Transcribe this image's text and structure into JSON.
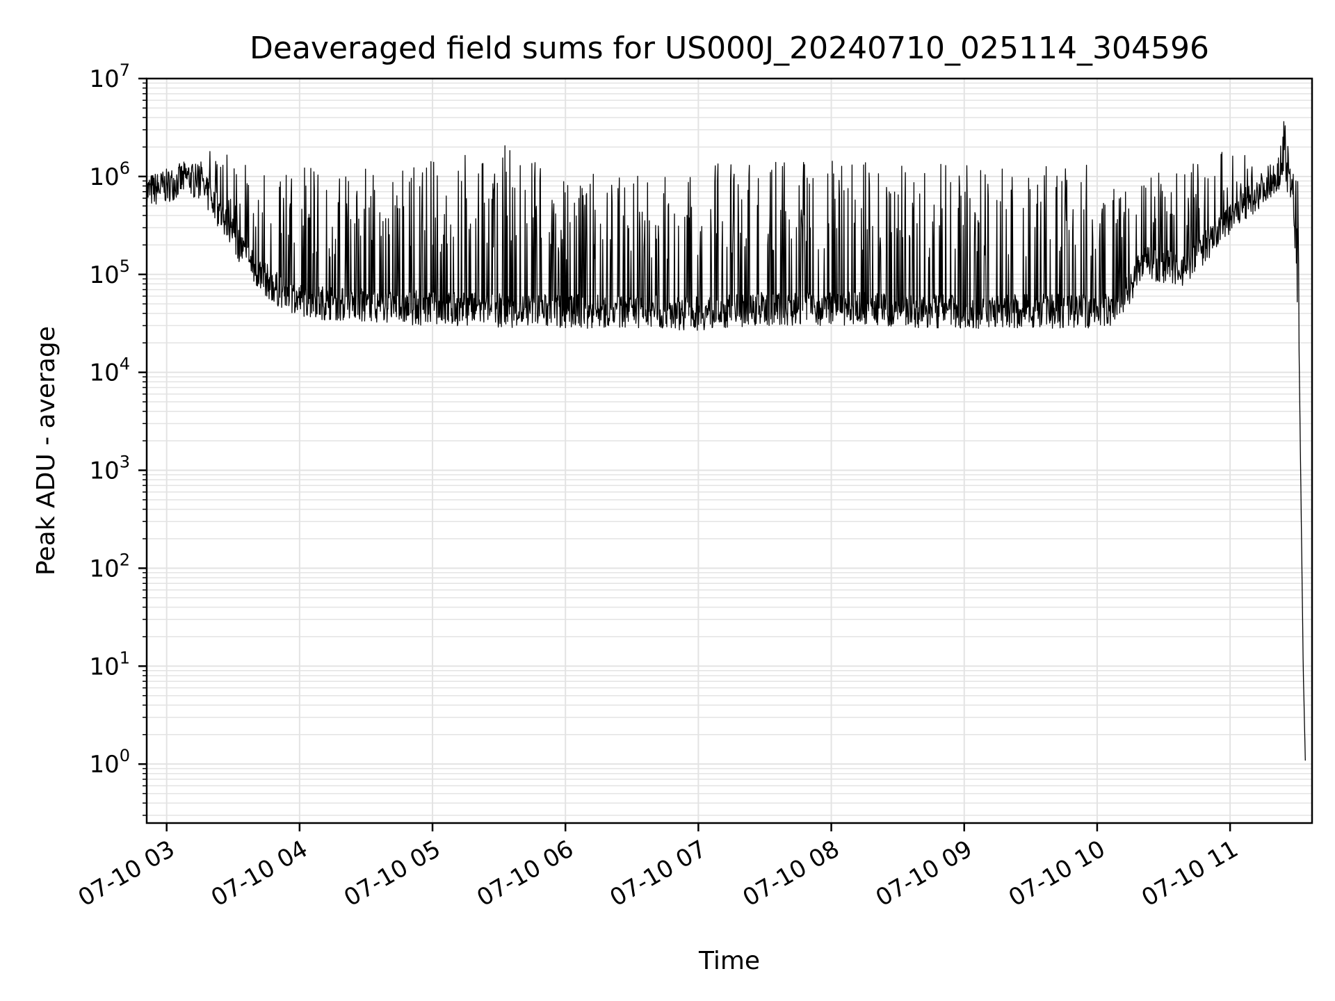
{
  "chart_data": {
    "type": "line",
    "title": "Deaveraged field sums for US000J_20240710_025114_304596",
    "xlabel": "Time",
    "ylabel": "Peak ADU - average",
    "y_scale": "log",
    "ylim": [
      0.25,
      10000000
    ],
    "xlim": [
      "2024-07-10 02:51",
      "2024-07-10 11:37"
    ],
    "grid": true,
    "line_color": "#000000",
    "grid_color": "#e3e3e3",
    "x_ticks": [
      {
        "value": "2024-07-10 03:00",
        "label": "07-10 03"
      },
      {
        "value": "2024-07-10 04:00",
        "label": "07-10 04"
      },
      {
        "value": "2024-07-10 05:00",
        "label": "07-10 05"
      },
      {
        "value": "2024-07-10 06:00",
        "label": "07-10 06"
      },
      {
        "value": "2024-07-10 07:00",
        "label": "07-10 07"
      },
      {
        "value": "2024-07-10 08:00",
        "label": "07-10 08"
      },
      {
        "value": "2024-07-10 09:00",
        "label": "07-10 09"
      },
      {
        "value": "2024-07-10 10:00",
        "label": "07-10 10"
      },
      {
        "value": "2024-07-10 11:00",
        "label": "07-10 11"
      }
    ],
    "y_ticks": [
      {
        "value": 1,
        "base": "10",
        "exp": "0"
      },
      {
        "value": 10,
        "base": "10",
        "exp": "1"
      },
      {
        "value": 100,
        "base": "10",
        "exp": "2"
      },
      {
        "value": 1000,
        "base": "10",
        "exp": "3"
      },
      {
        "value": 10000,
        "base": "10",
        "exp": "4"
      },
      {
        "value": 100000,
        "base": "10",
        "exp": "5"
      },
      {
        "value": 1000000,
        "base": "10",
        "exp": "6"
      },
      {
        "value": 10000000,
        "base": "10",
        "exp": "7"
      }
    ],
    "series": [
      {
        "x": [
          "2024-07-10 02:51",
          "2024-07-10 03:00",
          "2024-07-10 03:10",
          "2024-07-10 03:20",
          "2024-07-10 03:30",
          "2024-07-10 03:40",
          "2024-07-10 03:50",
          "2024-07-10 04:00",
          "2024-07-10 04:15",
          "2024-07-10 04:30",
          "2024-07-10 04:45",
          "2024-07-10 05:00",
          "2024-07-10 05:30",
          "2024-07-10 06:00",
          "2024-07-10 06:30",
          "2024-07-10 07:00",
          "2024-07-10 07:30",
          "2024-07-10 08:00",
          "2024-07-10 08:30",
          "2024-07-10 09:00",
          "2024-07-10 09:30",
          "2024-07-10 10:00",
          "2024-07-10 10:10",
          "2024-07-10 10:20",
          "2024-07-10 10:30",
          "2024-07-10 10:40",
          "2024-07-10 10:50",
          "2024-07-10 11:00",
          "2024-07-10 11:10",
          "2024-07-10 11:20",
          "2024-07-10 11:25",
          "2024-07-10 11:28",
          "2024-07-10 11:31",
          "2024-07-10 11:33",
          "2024-07-10 11:34"
        ],
        "baseline": [
          700000,
          800000,
          1000000,
          600000,
          250000,
          110000,
          70000,
          55000,
          50000,
          48000,
          46000,
          45000,
          43000,
          42000,
          42000,
          40000,
          45000,
          45000,
          43000,
          42000,
          42000,
          42000,
          45000,
          130000,
          120000,
          110000,
          200000,
          380000,
          600000,
          1000000,
          1200000,
          700000,
          30000,
          10,
          1
        ],
        "spikes": [
          1200000,
          1300000,
          2300000,
          1900000,
          1700000,
          1600000,
          1200000,
          1400000,
          1100000,
          1300000,
          1200000,
          1500000,
          2400000,
          1200000,
          1000000,
          1300000,
          1500000,
          1500000,
          1400000,
          1300000,
          1200000,
          1600000,
          1000000,
          1200000,
          1300000,
          1200000,
          1800000,
          2000000,
          1500000,
          1400000,
          5000000,
          1300000,
          null,
          null,
          null
        ]
      }
    ]
  }
}
